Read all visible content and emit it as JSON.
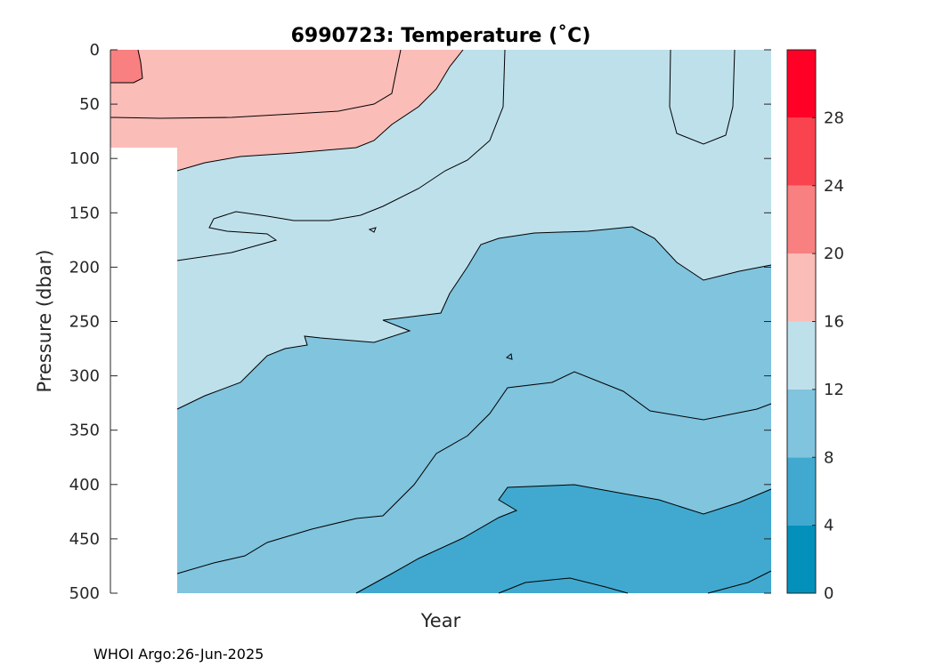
{
  "chart_data": {
    "type": "contour",
    "title": "6990723:  Temperature (˚C)",
    "xlabel": "Year",
    "ylabel": "Pressure (dbar)",
    "y_ticks": [
      0,
      50,
      100,
      150,
      200,
      250,
      300,
      350,
      400,
      450,
      500
    ],
    "ylim": [
      0,
      500
    ],
    "y_reversed": true,
    "colorbar": {
      "levels": [
        0,
        4,
        8,
        12,
        16,
        20,
        24,
        28,
        32
      ],
      "tick_labels": [
        "0",
        "4",
        "8",
        "12",
        "16",
        "20",
        "24",
        "28"
      ],
      "colors": [
        "#0390bb",
        "#41a9cf",
        "#80c4de",
        "#bee0eb",
        "#fbbdb8",
        "#f98080",
        "#f9434f",
        "#ff0027"
      ]
    },
    "grid": false,
    "contour_levels_shown": [
      8,
      12,
      16,
      20
    ],
    "depth_bands": [
      {
        "temp_range": "20-24",
        "location": "top-left, 0-30 dbar"
      },
      {
        "temp_range": "16-20",
        "location": "surface layer, to ~110 dbar on left"
      },
      {
        "temp_range": "12-16",
        "location": "thermocline, ~100-330 dbar"
      },
      {
        "temp_range": "8-12",
        "location": "lower layer, ~160-500 dbar"
      },
      {
        "temp_range": "4-8",
        "location": "bottom patches near 500 dbar"
      }
    ]
  },
  "footer": {
    "credit": "WHOI Argo:26-Jun-2025"
  }
}
